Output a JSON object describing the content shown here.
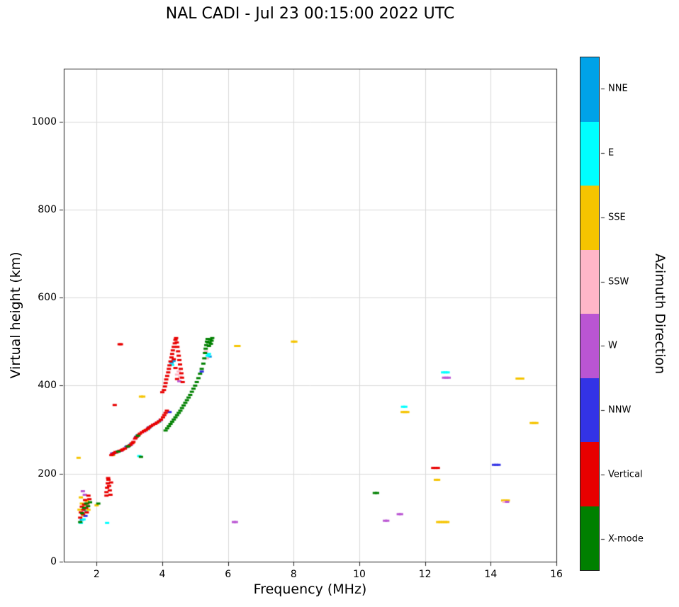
{
  "title": "NAL CADI - Jul 23 00:15:00 2022 UTC",
  "chart_data": {
    "type": "scatter",
    "title": "NAL CADI - Jul 23 00:15:00 2022 UTC",
    "xlabel": "Frequency (MHz)",
    "ylabel": "Virtual height (km)",
    "xlim": [
      1,
      16
    ],
    "ylim": [
      0,
      1120
    ],
    "x_ticks": [
      "2",
      "4",
      "6",
      "8",
      "10",
      "12",
      "14",
      "16"
    ],
    "x_tick_values": [
      2,
      4,
      6,
      8,
      10,
      12,
      14,
      16
    ],
    "y_ticks": [
      "0",
      "200",
      "400",
      "600",
      "800",
      "1000"
    ],
    "y_tick_values": [
      0,
      200,
      400,
      600,
      800,
      1000
    ],
    "grid": true,
    "grid_color": "#d9d9d9",
    "axis_color": "#222222",
    "marker": {
      "width": 6,
      "height": 3
    },
    "legend": {
      "label": "Azimuth Direction",
      "position": "right-colorbar",
      "order_note": "entries listed top to bottom as shown on colorbar"
    },
    "series": [
      {
        "name": "NNE",
        "color": "#00A2E8",
        "points": [
          [
            1.55,
            95
          ],
          [
            2.52,
            247
          ],
          [
            2.9,
            260
          ],
          [
            3.05,
            268
          ],
          [
            3.25,
            287
          ],
          [
            3.62,
            306
          ],
          [
            4.28,
            452
          ],
          [
            4.34,
            456
          ],
          [
            5.44,
            466
          ]
        ]
      },
      {
        "name": "E",
        "color": "#00FFFF",
        "points": [
          [
            1.52,
            88
          ],
          [
            1.6,
            96
          ],
          [
            1.66,
            116
          ],
          [
            2.32,
            88
          ],
          [
            2.62,
            250
          ],
          [
            3.0,
            264
          ],
          [
            3.3,
            240
          ],
          [
            3.55,
            300
          ],
          [
            3.9,
            318
          ],
          [
            4.3,
            447
          ],
          [
            5.38,
            468
          ],
          [
            5.42,
            472
          ],
          [
            11.33,
            352
          ],
          [
            11.4,
            352
          ],
          [
            12.55,
            430
          ],
          [
            12.62,
            430
          ],
          [
            12.69,
            430
          ]
        ]
      },
      {
        "name": "SSE",
        "color": "#F5C400",
        "points": [
          [
            1.45,
            236
          ],
          [
            1.48,
            118
          ],
          [
            1.52,
            146
          ],
          [
            1.55,
            132
          ],
          [
            1.6,
            105
          ],
          [
            1.65,
            128
          ],
          [
            1.7,
            138
          ],
          [
            1.75,
            118
          ],
          [
            2.0,
            128
          ],
          [
            2.5,
            242
          ],
          [
            2.78,
            254
          ],
          [
            3.1,
            270
          ],
          [
            3.35,
            375
          ],
          [
            3.42,
            375
          ],
          [
            3.48,
            298
          ],
          [
            3.85,
            316
          ],
          [
            6.25,
            490
          ],
          [
            6.32,
            490
          ],
          [
            7.98,
            500
          ],
          [
            8.05,
            500
          ],
          [
            11.32,
            340
          ],
          [
            11.39,
            340
          ],
          [
            11.46,
            340
          ],
          [
            12.33,
            186
          ],
          [
            12.4,
            186
          ],
          [
            12.4,
            90
          ],
          [
            12.47,
            90
          ],
          [
            12.54,
            90
          ],
          [
            12.61,
            90
          ],
          [
            12.68,
            90
          ],
          [
            14.38,
            139
          ],
          [
            14.45,
            139
          ],
          [
            14.52,
            139
          ],
          [
            14.82,
            416
          ],
          [
            14.89,
            416
          ],
          [
            14.96,
            416
          ],
          [
            15.25,
            315
          ],
          [
            15.32,
            315
          ],
          [
            15.39,
            315
          ]
        ]
      },
      {
        "name": "SSW",
        "color": "#FFB6C8",
        "points": [
          [
            1.62,
            112
          ],
          [
            1.7,
            126
          ],
          [
            2.56,
            249
          ],
          [
            2.85,
            258
          ],
          [
            3.15,
            278
          ],
          [
            3.52,
            300
          ],
          [
            3.7,
            310
          ],
          [
            4.45,
            425
          ],
          [
            4.5,
            432
          ],
          [
            4.55,
            420
          ],
          [
            5.33,
            478
          ],
          [
            5.36,
            462
          ],
          [
            14.42,
            136
          ]
        ]
      },
      {
        "name": "W",
        "color": "#BA55D3",
        "points": [
          [
            1.58,
            160
          ],
          [
            1.64,
            152
          ],
          [
            2.47,
            246
          ],
          [
            2.75,
            252
          ],
          [
            3.05,
            266
          ],
          [
            3.45,
            296
          ],
          [
            3.8,
            314
          ],
          [
            4.52,
            410
          ],
          [
            6.18,
            90
          ],
          [
            6.24,
            90
          ],
          [
            10.78,
            93
          ],
          [
            10.85,
            93
          ],
          [
            11.2,
            108
          ],
          [
            11.27,
            108
          ],
          [
            12.58,
            418
          ],
          [
            12.65,
            418
          ],
          [
            12.72,
            418
          ],
          [
            14.5,
            136
          ]
        ]
      },
      {
        "name": "NNW",
        "color": "#3333E6",
        "points": [
          [
            1.66,
            104
          ],
          [
            2.5,
            245
          ],
          [
            2.68,
            251
          ],
          [
            2.92,
            262
          ],
          [
            3.2,
            283
          ],
          [
            3.58,
            304
          ],
          [
            3.95,
            322
          ],
          [
            4.22,
            340
          ],
          [
            5.2,
            432
          ],
          [
            14.1,
            220
          ],
          [
            14.17,
            220
          ],
          [
            14.24,
            220
          ]
        ]
      },
      {
        "name": "Vertical",
        "color": "#E80000",
        "points": [
          [
            1.5,
            100
          ],
          [
            1.52,
            112
          ],
          [
            1.55,
            125
          ],
          [
            1.58,
            108
          ],
          [
            1.6,
            118
          ],
          [
            1.62,
            130
          ],
          [
            1.65,
            140
          ],
          [
            1.68,
            122
          ],
          [
            1.7,
            112
          ],
          [
            1.72,
            132
          ],
          [
            1.75,
            150
          ],
          [
            1.78,
            142
          ],
          [
            2.3,
            150
          ],
          [
            2.3,
            158
          ],
          [
            2.32,
            168
          ],
          [
            2.34,
            178
          ],
          [
            2.36,
            186
          ],
          [
            2.38,
            172
          ],
          [
            2.4,
            162
          ],
          [
            2.42,
            152
          ],
          [
            2.44,
            180
          ],
          [
            2.35,
            190
          ],
          [
            2.55,
            356
          ],
          [
            2.7,
            494
          ],
          [
            2.74,
            494
          ],
          [
            2.45,
            242
          ],
          [
            2.48,
            244
          ],
          [
            2.54,
            247
          ],
          [
            2.58,
            249
          ],
          [
            2.6,
            248
          ],
          [
            2.64,
            250
          ],
          [
            2.7,
            252
          ],
          [
            2.76,
            253
          ],
          [
            2.8,
            255
          ],
          [
            2.86,
            257
          ],
          [
            2.94,
            261
          ],
          [
            2.98,
            263
          ],
          [
            3.02,
            265
          ],
          [
            3.08,
            269
          ],
          [
            3.12,
            272
          ],
          [
            3.18,
            280
          ],
          [
            3.22,
            284
          ],
          [
            3.28,
            288
          ],
          [
            3.32,
            291
          ],
          [
            3.38,
            294
          ],
          [
            3.44,
            297
          ],
          [
            3.5,
            299
          ],
          [
            3.56,
            302
          ],
          [
            3.6,
            305
          ],
          [
            3.66,
            308
          ],
          [
            3.72,
            311
          ],
          [
            3.78,
            313
          ],
          [
            3.84,
            316
          ],
          [
            3.9,
            319
          ],
          [
            3.96,
            323
          ],
          [
            4.02,
            328
          ],
          [
            4.06,
            333
          ],
          [
            4.1,
            338
          ],
          [
            4.14,
            343
          ],
          [
            4.0,
            385
          ],
          [
            4.05,
            390
          ],
          [
            4.08,
            398
          ],
          [
            4.1,
            406
          ],
          [
            4.12,
            414
          ],
          [
            4.15,
            422
          ],
          [
            4.18,
            430
          ],
          [
            4.2,
            438
          ],
          [
            4.22,
            446
          ],
          [
            4.25,
            455
          ],
          [
            4.28,
            464
          ],
          [
            4.3,
            472
          ],
          [
            4.32,
            480
          ],
          [
            4.35,
            488
          ],
          [
            4.38,
            496
          ],
          [
            4.4,
            504
          ],
          [
            4.42,
            508
          ],
          [
            4.44,
            498
          ],
          [
            4.46,
            488
          ],
          [
            4.48,
            478
          ],
          [
            4.5,
            468
          ],
          [
            4.52,
            458
          ],
          [
            4.54,
            448
          ],
          [
            4.56,
            438
          ],
          [
            4.58,
            428
          ],
          [
            4.6,
            418
          ],
          [
            4.62,
            408
          ],
          [
            4.45,
            415
          ],
          [
            4.4,
            440
          ],
          [
            4.35,
            460
          ],
          [
            12.25,
            213
          ],
          [
            12.32,
            213
          ],
          [
            12.39,
            213
          ]
        ]
      },
      {
        "name": "X-mode",
        "color": "#008000",
        "points": [
          [
            1.5,
            90
          ],
          [
            1.56,
            110
          ],
          [
            1.62,
            122
          ],
          [
            1.68,
            132
          ],
          [
            1.74,
            126
          ],
          [
            1.8,
            135
          ],
          [
            2.05,
            132
          ],
          [
            2.66,
            250
          ],
          [
            2.96,
            262
          ],
          [
            3.26,
            286
          ],
          [
            3.35,
            238
          ],
          [
            4.1,
            298
          ],
          [
            4.15,
            303
          ],
          [
            4.2,
            308
          ],
          [
            4.25,
            313
          ],
          [
            4.3,
            318
          ],
          [
            4.35,
            323
          ],
          [
            4.4,
            328
          ],
          [
            4.45,
            333
          ],
          [
            4.5,
            338
          ],
          [
            4.55,
            343
          ],
          [
            4.6,
            349
          ],
          [
            4.65,
            355
          ],
          [
            4.7,
            361
          ],
          [
            4.75,
            367
          ],
          [
            4.8,
            373
          ],
          [
            4.85,
            379
          ],
          [
            4.9,
            386
          ],
          [
            4.95,
            393
          ],
          [
            5.0,
            400
          ],
          [
            5.05,
            408
          ],
          [
            5.1,
            417
          ],
          [
            5.15,
            427
          ],
          [
            5.2,
            438
          ],
          [
            5.25,
            450
          ],
          [
            5.28,
            462
          ],
          [
            5.3,
            474
          ],
          [
            5.32,
            484
          ],
          [
            5.34,
            492
          ],
          [
            5.36,
            500
          ],
          [
            5.38,
            506
          ],
          [
            5.4,
            498
          ],
          [
            5.42,
            490
          ],
          [
            5.44,
            498
          ],
          [
            5.46,
            505
          ],
          [
            5.48,
            495
          ],
          [
            5.5,
            502
          ],
          [
            5.52,
            508
          ],
          [
            10.47,
            156
          ],
          [
            10.54,
            156
          ]
        ]
      }
    ]
  }
}
